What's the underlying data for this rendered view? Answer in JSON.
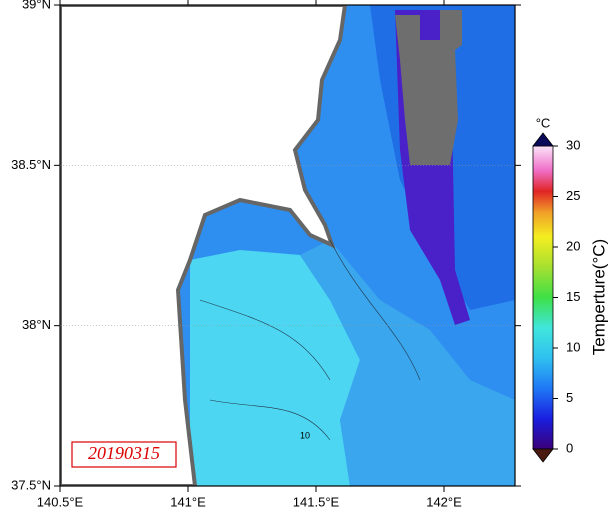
{
  "map": {
    "lon_ticks": [
      {
        "value": 140.5,
        "label": "140.5°E"
      },
      {
        "value": 141,
        "label": "141°E"
      },
      {
        "value": 141.5,
        "label": "141.5°E"
      },
      {
        "value": 142,
        "label": "142°E"
      }
    ],
    "lat_ticks": [
      {
        "value": 39,
        "label": "39°N"
      },
      {
        "value": 38.5,
        "label": "38.5°N"
      },
      {
        "value": 38,
        "label": "38°N"
      },
      {
        "value": 37.5,
        "label": "37.5°N"
      }
    ],
    "date": "20190315",
    "contour_label": "10"
  },
  "colorbar": {
    "unit": "°C",
    "title": "Temperture(°C)",
    "range": [
      0,
      30
    ],
    "ticks": [
      0,
      5,
      10,
      15,
      20,
      25,
      30
    ]
  }
}
